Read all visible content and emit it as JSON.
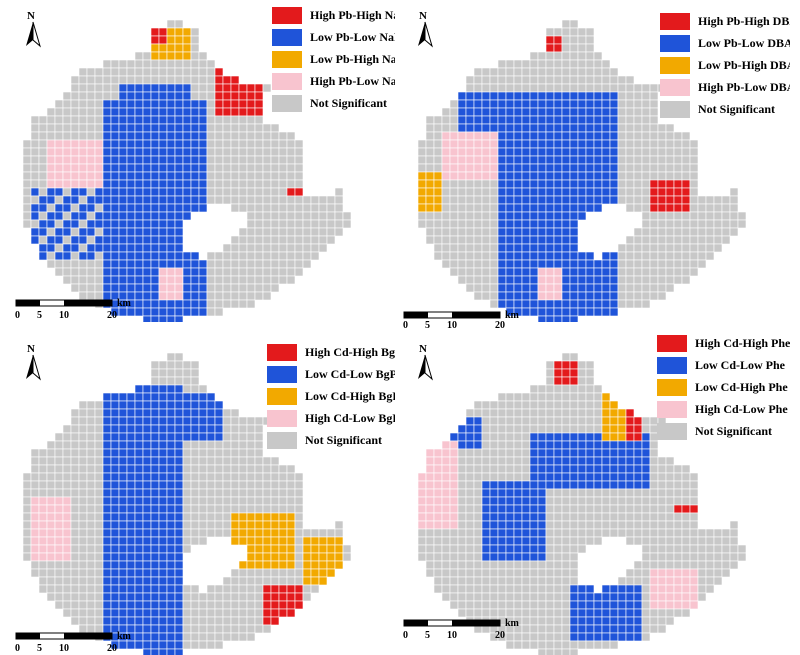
{
  "colors": {
    "high_high": "#e31a1c",
    "low_low": "#1f54d9",
    "low_high": "#f2a900",
    "high_low": "#f8c4cf",
    "not_significant": "#c8c8c8",
    "grid_line": "#ffffff"
  },
  "north_letter": "N",
  "scale": {
    "ticks": [
      "0",
      "5",
      "10",
      "20"
    ],
    "unit": "km"
  },
  "panels": [
    {
      "legend": [
        "High Pb-High NaP",
        "Low Pb-Low NaP",
        "Low Pb-High NaP",
        "High Pb-Low NaP",
        "Not Significant"
      ]
    },
    {
      "legend": [
        "High Pb-High DBA",
        "Low Pb-Low DBA",
        "Low Pb-High DBA",
        "High Pb-Low DBA",
        "Not Significant"
      ]
    },
    {
      "legend": [
        "High Cd-High BgP",
        "Low Cd-Low BgP",
        "Low Cd-High BgP",
        "High Cd-Low BgP",
        "Not Significant"
      ]
    },
    {
      "legend": [
        "High Cd-High Phe",
        "Low Cd-Low Phe",
        "Low Cd-High Phe",
        "High Cd-Low Phe",
        "Not Significant"
      ]
    }
  ]
}
